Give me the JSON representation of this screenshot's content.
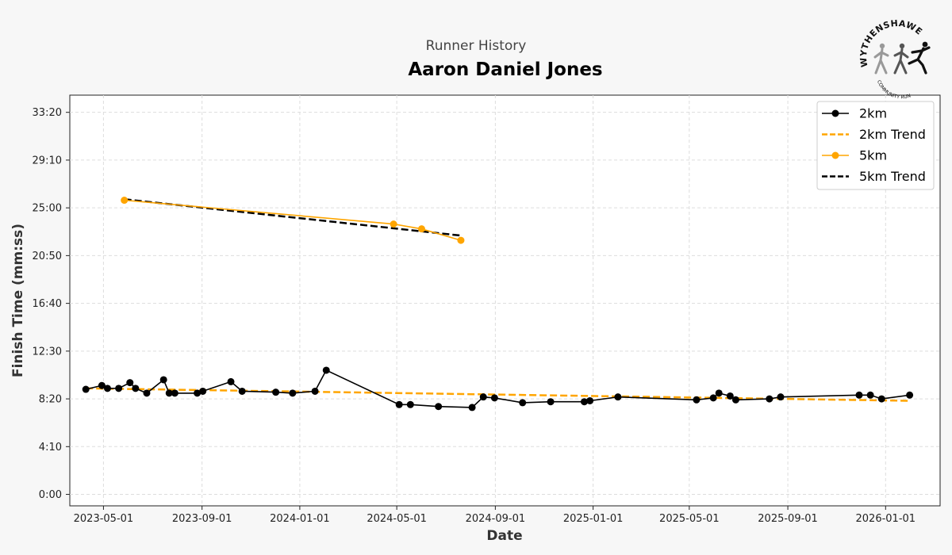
{
  "header": {
    "supertitle": "Runner History",
    "title": "Aaron Daniel Jones"
  },
  "logo": {
    "name": "WYTHENSHAWE",
    "tagline": "COMMUNITY RUN"
  },
  "chart_data": {
    "type": "line",
    "xlabel": "Date",
    "ylabel": "Finish Time (mm:ss)",
    "x_ticks": [
      "2023-05-01",
      "2023-09-01",
      "2024-01-01",
      "2024-05-01",
      "2024-09-01",
      "2025-01-01",
      "2025-05-01",
      "2025-09-01",
      "2026-01-01"
    ],
    "y_ticks": [
      "0:00",
      "4:10",
      "8:20",
      "12:30",
      "16:40",
      "20:50",
      "25:00",
      "29:10",
      "33:20"
    ],
    "xlim": [
      "2023-03-20",
      "2026-03-10"
    ],
    "ylim_seconds": [
      -60,
      2090
    ],
    "grid": true,
    "legend_position": "top-right",
    "series": [
      {
        "name": "2km",
        "kind": "data",
        "color": "#000000",
        "marker": true,
        "points": [
          [
            "2023-04-09",
            "9:10"
          ],
          [
            "2023-04-29",
            "9:30"
          ],
          [
            "2023-05-06",
            "9:15"
          ],
          [
            "2023-05-20",
            "9:15"
          ],
          [
            "2023-06-03",
            "9:45"
          ],
          [
            "2023-06-10",
            "9:15"
          ],
          [
            "2023-06-24",
            "8:50"
          ],
          [
            "2023-07-15",
            "10:00"
          ],
          [
            "2023-07-22",
            "8:50"
          ],
          [
            "2023-07-29",
            "8:50"
          ],
          [
            "2023-08-26",
            "8:50"
          ],
          [
            "2023-09-02",
            "9:00"
          ],
          [
            "2023-10-07",
            "9:50"
          ],
          [
            "2023-10-21",
            "9:00"
          ],
          [
            "2023-12-02",
            "8:55"
          ],
          [
            "2023-12-23",
            "8:50"
          ],
          [
            "2024-01-20",
            "9:00"
          ],
          [
            "2024-02-03",
            "10:50"
          ],
          [
            "2024-05-04",
            "7:50"
          ],
          [
            "2024-05-18",
            "7:50"
          ],
          [
            "2024-06-22",
            "7:40"
          ],
          [
            "2024-08-03",
            "7:35"
          ],
          [
            "2024-08-17",
            "8:30"
          ],
          [
            "2024-08-31",
            "8:25"
          ],
          [
            "2024-10-05",
            "8:00"
          ],
          [
            "2024-11-09",
            "8:05"
          ],
          [
            "2024-12-21",
            "8:05"
          ],
          [
            "2024-12-28",
            "8:10"
          ],
          [
            "2025-02-01",
            "8:30"
          ],
          [
            "2025-05-10",
            "8:15"
          ],
          [
            "2025-05-31",
            "8:25"
          ],
          [
            "2025-06-07",
            "8:50"
          ],
          [
            "2025-06-21",
            "8:35"
          ],
          [
            "2025-06-28",
            "8:15"
          ],
          [
            "2025-08-09",
            "8:20"
          ],
          [
            "2025-08-23",
            "8:30"
          ],
          [
            "2025-11-29",
            "8:40"
          ],
          [
            "2025-12-13",
            "8:40"
          ],
          [
            "2025-12-27",
            "8:20"
          ],
          [
            "2026-01-31",
            "8:40"
          ]
        ]
      },
      {
        "name": "2km Trend",
        "kind": "trend",
        "color": "#ffa500",
        "dashed": true,
        "points": [
          [
            "2023-04-09",
            "9:15"
          ],
          [
            "2026-01-31",
            "8:10"
          ]
        ]
      },
      {
        "name": "5km",
        "kind": "data",
        "color": "#ffa500",
        "marker": true,
        "points": [
          [
            "2023-05-27",
            "25:40"
          ],
          [
            "2024-04-27",
            "23:35"
          ],
          [
            "2024-06-01",
            "23:10"
          ],
          [
            "2024-07-20",
            "22:10"
          ]
        ]
      },
      {
        "name": "5km Trend",
        "kind": "trend",
        "color": "#000000",
        "dashed": true,
        "points": [
          [
            "2023-05-27",
            "25:45"
          ],
          [
            "2024-07-20",
            "22:35"
          ]
        ]
      }
    ]
  }
}
